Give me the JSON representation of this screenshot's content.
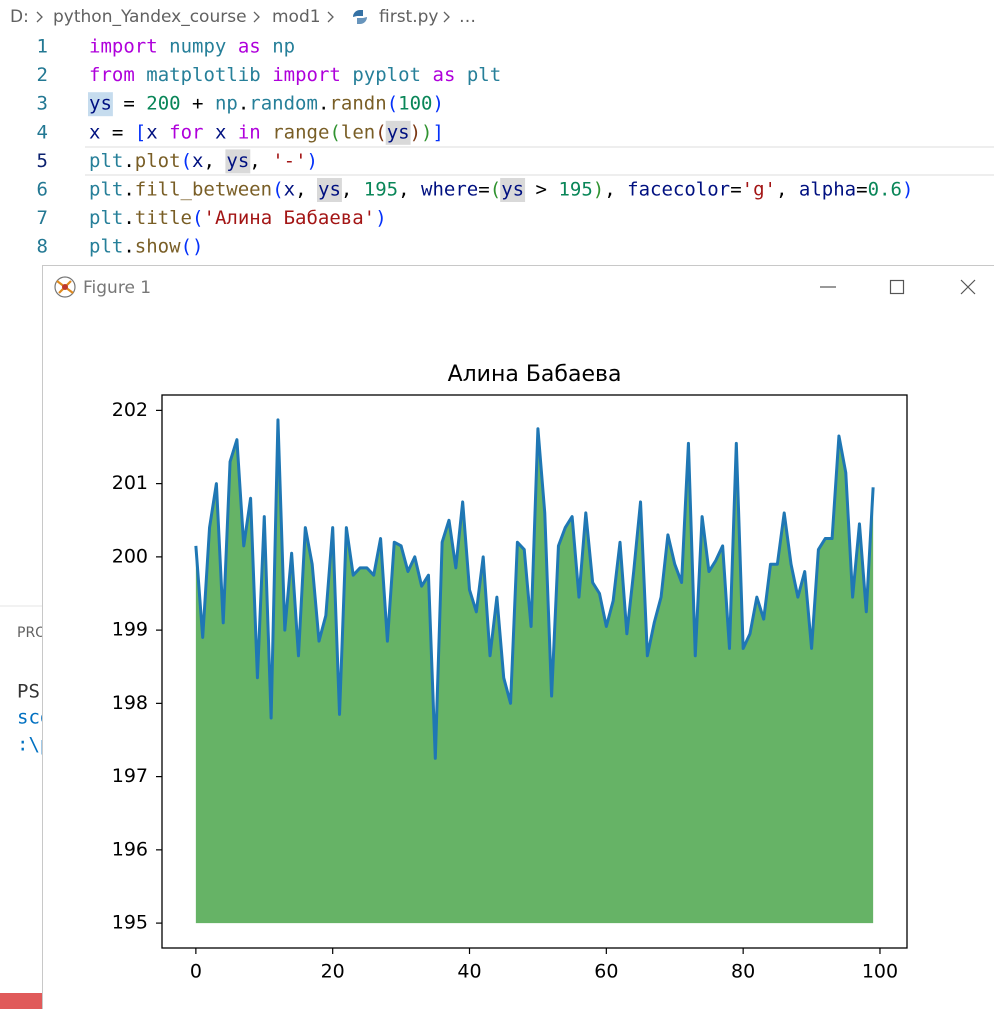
{
  "breadcrumb": [
    "D:",
    "python_Yandex_course",
    "mod1",
    "first.py",
    "…"
  ],
  "code": {
    "lines": [
      {
        "number": 1,
        "tokens": [
          {
            "text": "import",
            "color": "#af00db"
          },
          {
            "text": " ",
            "color": "#000000"
          },
          {
            "text": "numpy",
            "color": "#267f99"
          },
          {
            "text": " ",
            "color": "#000000"
          },
          {
            "text": "as",
            "color": "#af00db"
          },
          {
            "text": " ",
            "color": "#000000"
          },
          {
            "text": "np",
            "color": "#267f99"
          }
        ]
      },
      {
        "number": 2,
        "tokens": [
          {
            "text": "from",
            "color": "#af00db"
          },
          {
            "text": " ",
            "color": "#000000"
          },
          {
            "text": "matplotlib",
            "color": "#267f99"
          },
          {
            "text": " ",
            "color": "#000000"
          },
          {
            "text": "import",
            "color": "#af00db"
          },
          {
            "text": " ",
            "color": "#000000"
          },
          {
            "text": "pyplot",
            "color": "#267f99"
          },
          {
            "text": " ",
            "color": "#000000"
          },
          {
            "text": "as",
            "color": "#af00db"
          },
          {
            "text": " ",
            "color": "#000000"
          },
          {
            "text": "plt",
            "color": "#267f99"
          }
        ]
      },
      {
        "number": 3,
        "tokens": [
          {
            "text": "ys",
            "color": "#001080",
            "highlight": "#c6dcee"
          },
          {
            "text": " = ",
            "color": "#000000"
          },
          {
            "text": "200",
            "color": "#098658"
          },
          {
            "text": " + ",
            "color": "#000000"
          },
          {
            "text": "np",
            "color": "#267f99"
          },
          {
            "text": ".",
            "color": "#000000"
          },
          {
            "text": "random",
            "color": "#267f99"
          },
          {
            "text": ".",
            "color": "#000000"
          },
          {
            "text": "randn",
            "color": "#795e26"
          },
          {
            "text": "(",
            "color": "#0431fa"
          },
          {
            "text": "100",
            "color": "#098658"
          },
          {
            "text": ")",
            "color": "#0431fa"
          }
        ]
      },
      {
        "number": 4,
        "tokens": [
          {
            "text": "x",
            "color": "#001080"
          },
          {
            "text": " = ",
            "color": "#000000"
          },
          {
            "text": "[",
            "color": "#0431fa"
          },
          {
            "text": "x",
            "color": "#001080"
          },
          {
            "text": " ",
            "color": "#000000"
          },
          {
            "text": "for",
            "color": "#af00db"
          },
          {
            "text": " ",
            "color": "#000000"
          },
          {
            "text": "x",
            "color": "#001080"
          },
          {
            "text": " ",
            "color": "#000000"
          },
          {
            "text": "in",
            "color": "#af00db"
          },
          {
            "text": " ",
            "color": "#000000"
          },
          {
            "text": "range",
            "color": "#795e26"
          },
          {
            "text": "(",
            "color": "#319331"
          },
          {
            "text": "len",
            "color": "#795e26"
          },
          {
            "text": "(",
            "color": "#7b3814"
          },
          {
            "text": "ys",
            "color": "#001080",
            "highlight": "#d9d9d9"
          },
          {
            "text": ")",
            "color": "#7b3814"
          },
          {
            "text": ")",
            "color": "#319331"
          },
          {
            "text": "]",
            "color": "#0431fa"
          }
        ]
      },
      {
        "number": 5,
        "tokens": [
          {
            "text": "plt",
            "color": "#267f99"
          },
          {
            "text": ".",
            "color": "#000000"
          },
          {
            "text": "plot",
            "color": "#795e26"
          },
          {
            "text": "(",
            "color": "#0431fa"
          },
          {
            "text": "x",
            "color": "#001080"
          },
          {
            "text": ", ",
            "color": "#000000"
          },
          {
            "text": "ys",
            "color": "#001080",
            "highlight": "#d9d9d9"
          },
          {
            "text": ", ",
            "color": "#000000"
          },
          {
            "text": "'-'",
            "color": "#a31515"
          },
          {
            "text": ")",
            "color": "#0431fa"
          }
        ]
      },
      {
        "number": 6,
        "tokens": [
          {
            "text": "plt",
            "color": "#267f99"
          },
          {
            "text": ".",
            "color": "#000000"
          },
          {
            "text": "fill_between",
            "color": "#795e26"
          },
          {
            "text": "(",
            "color": "#0431fa"
          },
          {
            "text": "x",
            "color": "#001080"
          },
          {
            "text": ", ",
            "color": "#000000"
          },
          {
            "text": "ys",
            "color": "#001080",
            "highlight": "#d9d9d9"
          },
          {
            "text": ", ",
            "color": "#000000"
          },
          {
            "text": "195",
            "color": "#098658"
          },
          {
            "text": ", ",
            "color": "#000000"
          },
          {
            "text": "where",
            "color": "#001080"
          },
          {
            "text": "=",
            "color": "#000000"
          },
          {
            "text": "(",
            "color": "#319331"
          },
          {
            "text": "ys",
            "color": "#001080",
            "highlight": "#d9d9d9"
          },
          {
            "text": " > ",
            "color": "#000000"
          },
          {
            "text": "195",
            "color": "#098658"
          },
          {
            "text": ")",
            "color": "#319331"
          },
          {
            "text": ", ",
            "color": "#000000"
          },
          {
            "text": "facecolor",
            "color": "#001080"
          },
          {
            "text": "=",
            "color": "#000000"
          },
          {
            "text": "'g'",
            "color": "#a31515"
          },
          {
            "text": ", ",
            "color": "#000000"
          },
          {
            "text": "alpha",
            "color": "#001080"
          },
          {
            "text": "=",
            "color": "#000000"
          },
          {
            "text": "0.6",
            "color": "#098658"
          },
          {
            "text": ")",
            "color": "#0431fa"
          }
        ]
      },
      {
        "number": 7,
        "tokens": [
          {
            "text": "plt",
            "color": "#267f99"
          },
          {
            "text": ".",
            "color": "#000000"
          },
          {
            "text": "title",
            "color": "#795e26"
          },
          {
            "text": "(",
            "color": "#0431fa"
          },
          {
            "text": "'Алина Бабаева'",
            "color": "#a31515"
          },
          {
            "text": ")",
            "color": "#0431fa"
          }
        ]
      },
      {
        "number": 8,
        "tokens": [
          {
            "text": "plt",
            "color": "#267f99"
          },
          {
            "text": ".",
            "color": "#000000"
          },
          {
            "text": "show",
            "color": "#795e26"
          },
          {
            "text": "(",
            "color": "#0431fa"
          },
          {
            "text": ")",
            "color": "#0431fa"
          }
        ]
      }
    ]
  },
  "panel": {
    "lines": [
      "PRO",
      "PS",
      "sco",
      ":\\p"
    ]
  },
  "window": {
    "title": "Figure 1"
  },
  "chart_data": {
    "type": "line",
    "title": "Алина Бабаева",
    "x": [
      0,
      1,
      2,
      3,
      4,
      5,
      6,
      7,
      8,
      9,
      10,
      11,
      12,
      13,
      14,
      15,
      16,
      17,
      18,
      19,
      20,
      21,
      22,
      23,
      24,
      25,
      26,
      27,
      28,
      29,
      30,
      31,
      32,
      33,
      34,
      35,
      36,
      37,
      38,
      39,
      40,
      41,
      42,
      43,
      44,
      45,
      46,
      47,
      48,
      49,
      50,
      51,
      52,
      53,
      54,
      55,
      56,
      57,
      58,
      59,
      60,
      61,
      62,
      63,
      64,
      65,
      66,
      67,
      68,
      69,
      70,
      71,
      72,
      73,
      74,
      75,
      76,
      77,
      78,
      79,
      80,
      81,
      82,
      83,
      84,
      85,
      86,
      87,
      88,
      89,
      90,
      91,
      92,
      93,
      94,
      95,
      96,
      97,
      98,
      99
    ],
    "series": [
      {
        "color": "#1f77b4",
        "fill_color": "#66b366",
        "fill_between": 195,
        "values": [
          200.15,
          198.9,
          200.4,
          201.0,
          199.1,
          201.3,
          201.6,
          200.15,
          200.8,
          198.35,
          200.55,
          197.8,
          201.87,
          199.0,
          200.05,
          198.65,
          200.4,
          199.9,
          198.85,
          199.2,
          200.4,
          197.85,
          200.4,
          199.75,
          199.85,
          199.85,
          199.75,
          200.25,
          198.85,
          200.2,
          200.15,
          199.8,
          200.0,
          199.6,
          199.75,
          197.25,
          200.2,
          200.5,
          199.85,
          200.75,
          199.55,
          199.25,
          200.0,
          198.65,
          199.45,
          198.35,
          198.0,
          200.2,
          200.1,
          199.05,
          201.75,
          200.6,
          198.1,
          200.15,
          200.4,
          200.55,
          199.45,
          200.6,
          199.65,
          199.5,
          199.05,
          199.4,
          200.2,
          198.95,
          199.8,
          200.75,
          198.65,
          199.1,
          199.45,
          200.3,
          199.9,
          199.65,
          201.55,
          198.65,
          200.55,
          199.8,
          199.95,
          200.15,
          198.75,
          201.55,
          198.75,
          198.95,
          199.45,
          199.15,
          199.9,
          199.9,
          200.6,
          199.9,
          199.45,
          199.8,
          198.75,
          200.1,
          200.25,
          200.25,
          201.65,
          201.15,
          199.45,
          200.45,
          199.25,
          200.95
        ]
      }
    ],
    "xlim": [
      -4.95,
      103.95
    ],
    "xticks": [
      0,
      20,
      40,
      60,
      80,
      100
    ],
    "ylim": [
      194.66,
      202.21
    ],
    "yticks": [
      195,
      196,
      197,
      198,
      199,
      200,
      201,
      202
    ]
  }
}
